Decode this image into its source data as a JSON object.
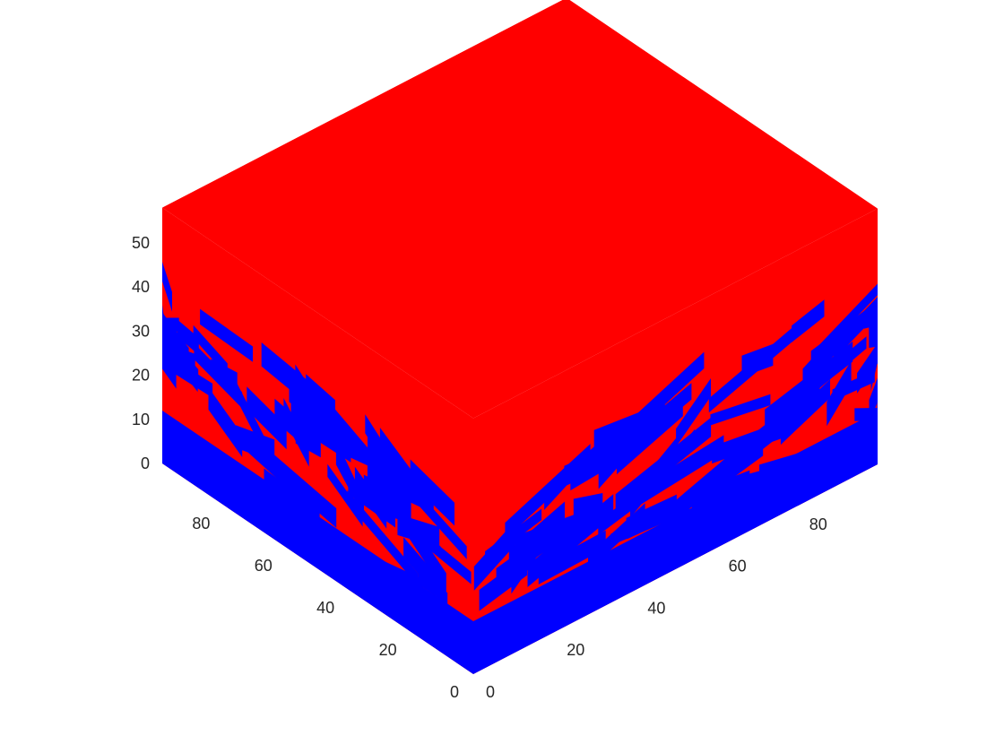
{
  "chart_data": {
    "type": "scatter3",
    "title": "",
    "xlabel": "",
    "ylabel": "",
    "zlabel": "",
    "view": "isometric",
    "grid": false,
    "box": false,
    "xlim": [
      0,
      100
    ],
    "ylim": [
      0,
      100
    ],
    "zlim": [
      0,
      58
    ],
    "x_ticks": [
      0,
      20,
      40,
      60,
      80
    ],
    "y_ticks": [
      0,
      20,
      40,
      60,
      80
    ],
    "z_ticks": [
      0,
      10,
      20,
      30,
      40,
      50
    ],
    "x_tick_labels": [
      "0",
      "20",
      "40",
      "60",
      "80"
    ],
    "y_tick_labels": [
      "0",
      "20",
      "40",
      "60",
      "80"
    ],
    "z_tick_labels": [
      "0",
      "10",
      "20",
      "30",
      "40",
      "50"
    ],
    "phases": [
      {
        "label": "blue",
        "color": "#0000ff",
        "region": "z < 12, plus scattered channels up to z = 40"
      },
      {
        "label": "red",
        "color": "#ff0000",
        "region": "z above the mixed band up to z = 58, plus channels between"
      }
    ],
    "solid_bottom_top_z": 12,
    "mixed_band_top_z": 40
  }
}
